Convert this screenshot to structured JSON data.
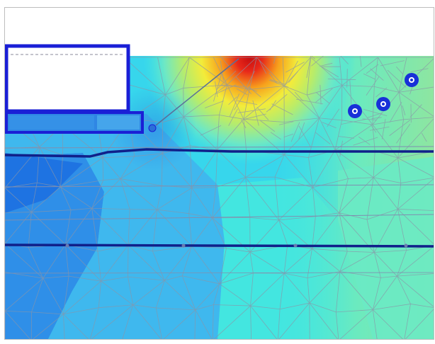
{
  "view": {
    "colors": {
      "deep_blue": "#1b6fe0",
      "blue": "#2f8fe8",
      "light_blue": "#3fb8ee",
      "cyan": "#37d6ec",
      "aqua": "#43e6e0",
      "mint": "#5eeac9",
      "green": "#8ee6a0",
      "yellow": "#f3ec3a",
      "orange": "#f7a21c",
      "red": "#e8281a",
      "dark_red": "#c80f10",
      "mesh": "#8a95a8",
      "structure": "#1a1fd6",
      "strut": "#10208a",
      "anchor_fill": "#1830d8",
      "background": "#ffffff"
    },
    "structure_icons": [
      "excavation-box",
      "slab",
      "anchor-node"
    ]
  }
}
